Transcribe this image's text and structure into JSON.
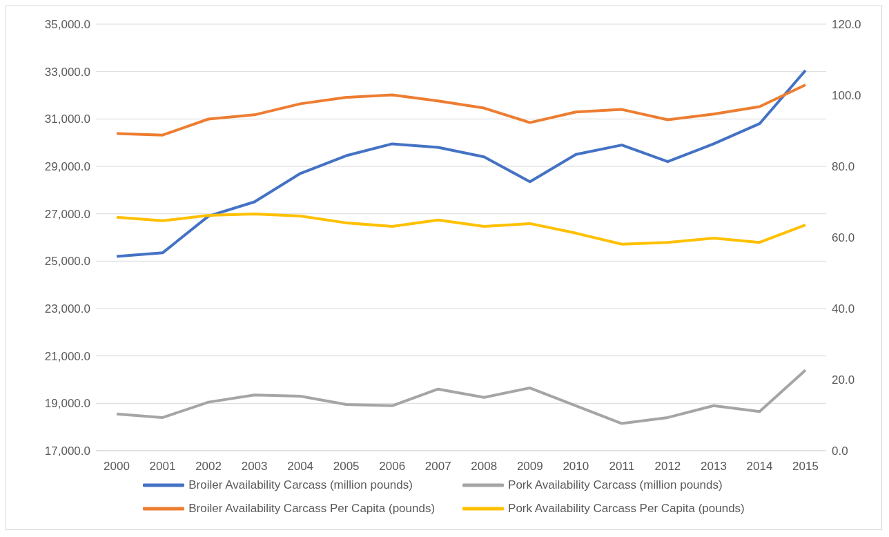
{
  "chart_data": {
    "type": "line",
    "categories": [
      "2000",
      "2001",
      "2002",
      "2003",
      "2004",
      "2005",
      "2006",
      "2007",
      "2008",
      "2009",
      "2010",
      "2011",
      "2012",
      "2013",
      "2014",
      "2015"
    ],
    "series": [
      {
        "name": "Broiler Availability Carcass (million pounds)",
        "color": "#4472c4",
        "values": [
          25200,
          25350,
          26900,
          27500,
          28700,
          29450,
          29950,
          29800,
          29400,
          28350,
          29500,
          29900,
          29200,
          29950,
          30800,
          33050
        ]
      },
      {
        "name": "Pork Availability Carcass (million pounds)",
        "color": "#a5a5a5",
        "values": [
          18550,
          18400,
          19050,
          19350,
          19300,
          18950,
          18900,
          19600,
          19250,
          19650,
          18900,
          18150,
          18400,
          18900,
          18650,
          20400
        ]
      },
      {
        "name": "Broiler Availability Carcass Per Capita (pounds)",
        "color": "#ed7d31",
        "axis": "y2",
        "values": [
          89.2,
          88.8,
          93.3,
          94.5,
          97.6,
          99.4,
          100.1,
          98.4,
          96.4,
          92.3,
          95.3,
          96.0,
          93.1,
          94.7,
          96.8,
          102.9
        ]
      },
      {
        "name": "Pork Availability Carcass Per Capita (pounds)",
        "color": "#ffc000",
        "axis": "y2",
        "values": [
          65.7,
          64.7,
          66.2,
          66.6,
          66.0,
          64.1,
          63.1,
          64.9,
          63.1,
          63.9,
          61.2,
          58.1,
          58.6,
          59.8,
          58.6,
          63.5
        ]
      }
    ],
    "ylim": [
      17000,
      35000
    ],
    "yticks": [
      {
        "value": 17000,
        "label": "17,000.0"
      },
      {
        "value": 19000,
        "label": "19,000.0"
      },
      {
        "value": 21000,
        "label": "21,000.0"
      },
      {
        "value": 23000,
        "label": "23,000.0"
      },
      {
        "value": 25000,
        "label": "25,000.0"
      },
      {
        "value": 27000,
        "label": "27,000.0"
      },
      {
        "value": 29000,
        "label": "29,000.0"
      },
      {
        "value": 31000,
        "label": "31,000.0"
      },
      {
        "value": 33000,
        "label": "33,000.0"
      },
      {
        "value": 35000,
        "label": "35,000.0"
      }
    ],
    "y2lim": [
      0,
      120
    ],
    "y2ticks": [
      {
        "value": 0,
        "label": "0.0"
      },
      {
        "value": 20,
        "label": "20.0"
      },
      {
        "value": 40,
        "label": "40.0"
      },
      {
        "value": 60,
        "label": "60.0"
      },
      {
        "value": 80,
        "label": "80.0"
      },
      {
        "value": 100,
        "label": "100.0"
      },
      {
        "value": 120,
        "label": "120.0"
      }
    ],
    "grid": "y",
    "legend": "bottom",
    "marker": "none",
    "line_style": "solid"
  }
}
